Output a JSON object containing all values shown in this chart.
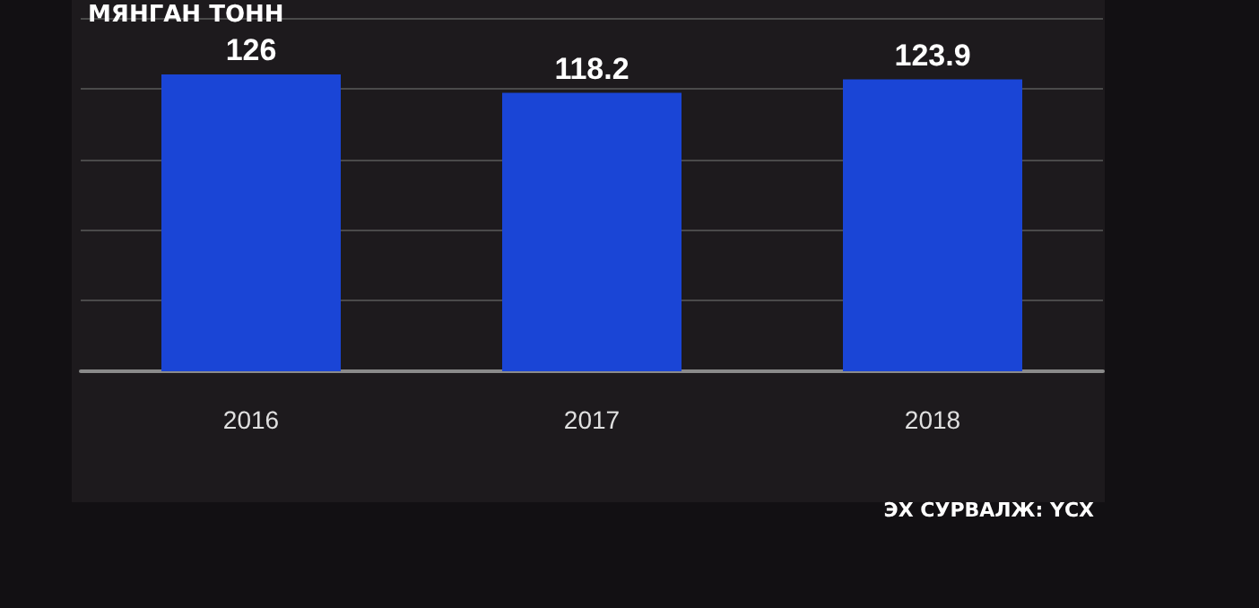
{
  "chart_data": {
    "type": "bar",
    "title": "МЯНГАН ТОНН",
    "categories": [
      "2016",
      "2017",
      "2018"
    ],
    "values": [
      126,
      118.2,
      123.9
    ],
    "color": "#1a45d6",
    "data_labels": true,
    "ylim": [
      0,
      150
    ],
    "yticks": [
      {
        "value": 0,
        "label": null
      },
      {
        "value": 30,
        "label": null
      },
      {
        "value": 60,
        "label": null
      },
      {
        "value": 90,
        "label": null
      },
      {
        "value": 120,
        "label": null
      },
      {
        "value": 150,
        "label": null
      }
    ],
    "tick_labels": "x",
    "grid": "y",
    "annotations": [
      "ЭХ СУРВАЛЖ: ҮСХ"
    ]
  }
}
